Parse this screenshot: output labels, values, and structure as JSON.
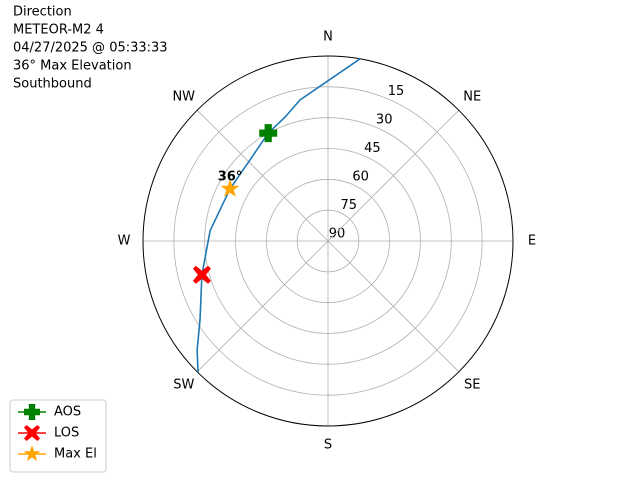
{
  "chart_data": {
    "type": "polar",
    "title": [
      "Direction",
      "METEOR-M2 4",
      "04/27/2025 @ 05:33:33",
      "36° Max Elevation",
      "Southbound"
    ],
    "theta_ticks": [
      {
        "value": 0,
        "label": "N"
      },
      {
        "value": 45,
        "label": "NE"
      },
      {
        "value": 90,
        "label": "E"
      },
      {
        "value": 135,
        "label": "SE"
      },
      {
        "value": 180,
        "label": "S"
      },
      {
        "value": 225,
        "label": "SW"
      },
      {
        "value": 270,
        "label": "W"
      },
      {
        "value": 315,
        "label": "NW"
      }
    ],
    "rlim": [
      0,
      90
    ],
    "rticks": [
      15,
      30,
      45,
      60,
      75,
      90
    ],
    "grid": true,
    "track": {
      "color": "#1f77b4",
      "azimuth": [
        10,
        348.8,
        340.9,
        331,
        316,
        298,
        275,
        255,
        238.3,
        230.2,
        224.6
      ],
      "elevation": [
        0,
        20,
        26.2,
        30,
        35.3,
        36,
        32.4,
        26.5,
        16.8,
        7.1,
        0
      ]
    },
    "series": [
      {
        "name": "AOS",
        "color": "#008000",
        "marker": "plus",
        "azimuth": [
          331
        ],
        "elevation": [
          30
        ]
      },
      {
        "name": "LOS",
        "color": "#ff0000",
        "marker": "x",
        "azimuth": [
          255
        ],
        "elevation": [
          26.5
        ]
      },
      {
        "name": "Max El",
        "color": "#ffa500",
        "marker": "star",
        "azimuth": [
          298
        ],
        "elevation": [
          36
        ]
      }
    ],
    "annotation": "36°",
    "legend": "lower left"
  }
}
